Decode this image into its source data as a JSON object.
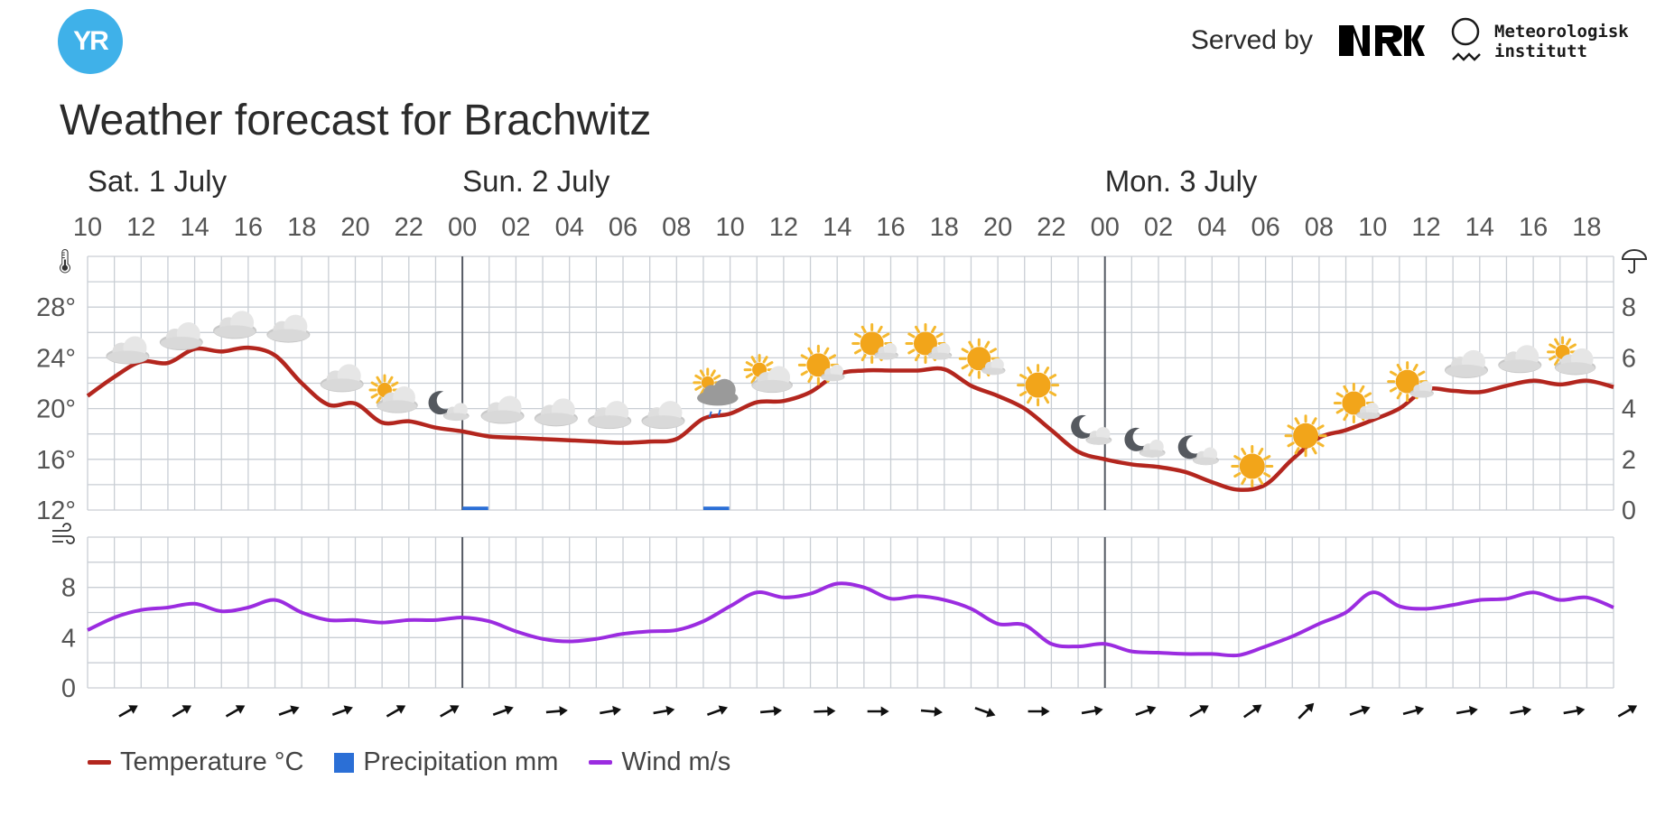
{
  "header": {
    "logo_text": "YR",
    "served_by": "Served by",
    "nrk_logo": "NRK",
    "met_line1": "Meteorologisk",
    "met_line2": "institutt"
  },
  "title": "Weather forecast for Brachwitz",
  "colors": {
    "temperature": "#b3261e",
    "precipitation": "#2b6fd6",
    "wind": "#9b2ce0",
    "grid": "#c9ced4",
    "day_divider": "#555a63",
    "logo": "#3fb1e9"
  },
  "legend": {
    "temperature": "Temperature °C",
    "precipitation": "Precipitation mm",
    "wind": "Wind m/s"
  },
  "chart_data": {
    "type": "line",
    "days": [
      {
        "label": "Sat. 1 July",
        "hour": 10
      },
      {
        "label": "Sun. 2 July",
        "hour": 24
      },
      {
        "label": "Mon. 3 July",
        "hour": 48
      }
    ],
    "x_range_hours": [
      10,
      67
    ],
    "x_tick_labels": [
      "10",
      "12",
      "14",
      "16",
      "18",
      "20",
      "22",
      "00",
      "02",
      "04",
      "06",
      "08",
      "10",
      "12",
      "14",
      "16",
      "18",
      "20",
      "22",
      "00",
      "02",
      "04",
      "06",
      "08",
      "10",
      "12",
      "14",
      "16",
      "18"
    ],
    "temperature_axis": {
      "ticks": [
        "12°",
        "16°",
        "20°",
        "24°",
        "28°"
      ],
      "range": [
        12,
        32
      ],
      "icon": "thermometer-icon"
    },
    "precipitation_axis": {
      "ticks": [
        "0",
        "2",
        "4",
        "6",
        "8"
      ],
      "range": [
        0,
        10
      ],
      "icon": "umbrella-icon"
    },
    "wind_axis": {
      "ticks": [
        "0",
        "4",
        "8"
      ],
      "range": [
        0,
        12
      ],
      "icon": "wind-icon"
    },
    "series": [
      {
        "name": "Temperature °C",
        "unit": "°C",
        "x": [
          10,
          11,
          12,
          13,
          14,
          15,
          16,
          17,
          18,
          19,
          20,
          21,
          22,
          23,
          24,
          25,
          26,
          27,
          28,
          29,
          30,
          31,
          32,
          33,
          34,
          35,
          36,
          37,
          38,
          39,
          40,
          41,
          42,
          43,
          44,
          45,
          46,
          47,
          48,
          49,
          50,
          51,
          52,
          53,
          54,
          55,
          56,
          57,
          58,
          59,
          60,
          61,
          62,
          63,
          64,
          65,
          66,
          67
        ],
        "values": [
          21.0,
          22.5,
          23.7,
          23.6,
          24.7,
          24.5,
          24.8,
          24.2,
          22.0,
          20.3,
          20.4,
          18.9,
          19.0,
          18.5,
          18.2,
          17.8,
          17.7,
          17.6,
          17.5,
          17.4,
          17.3,
          17.4,
          17.6,
          19.2,
          19.6,
          20.5,
          20.6,
          21.3,
          22.7,
          23.0,
          23.0,
          23.0,
          23.1,
          21.8,
          21.0,
          20.0,
          18.3,
          16.6,
          16.0,
          15.6,
          15.4,
          15.0,
          14.2,
          13.6,
          14.0,
          16.0,
          17.7,
          18.3,
          19.1,
          20.0,
          21.5,
          21.4,
          21.3,
          21.8,
          22.2,
          21.9,
          22.2,
          21.7
        ]
      },
      {
        "name": "Precipitation mm",
        "unit": "mm",
        "x": [
          24,
          33
        ],
        "values": [
          0.1,
          0.1
        ]
      },
      {
        "name": "Wind m/s",
        "unit": "m/s",
        "x": [
          10,
          11,
          12,
          13,
          14,
          15,
          16,
          17,
          18,
          19,
          20,
          21,
          22,
          23,
          24,
          25,
          26,
          27,
          28,
          29,
          30,
          31,
          32,
          33,
          34,
          35,
          36,
          37,
          38,
          39,
          40,
          41,
          42,
          43,
          44,
          45,
          46,
          47,
          48,
          49,
          50,
          51,
          52,
          53,
          54,
          55,
          56,
          57,
          58,
          59,
          60,
          61,
          62,
          63,
          64,
          65,
          66,
          67
        ],
        "values": [
          4.6,
          5.6,
          6.2,
          6.4,
          6.7,
          6.1,
          6.4,
          7.0,
          6.0,
          5.4,
          5.4,
          5.2,
          5.4,
          5.4,
          5.6,
          5.3,
          4.5,
          3.9,
          3.7,
          3.9,
          4.3,
          4.5,
          4.6,
          5.3,
          6.5,
          7.6,
          7.2,
          7.5,
          8.3,
          8.0,
          7.1,
          7.3,
          7.0,
          6.3,
          5.1,
          5.0,
          3.5,
          3.3,
          3.5,
          2.9,
          2.8,
          2.7,
          2.7,
          2.6,
          3.3,
          4.1,
          5.1,
          6.0,
          7.6,
          6.5,
          6.3,
          6.6,
          7.0,
          7.1,
          7.6,
          7.0,
          7.2,
          6.4
        ]
      }
    ],
    "weather_symbols": [
      {
        "hour": 11,
        "symbol": "cloudy-icon"
      },
      {
        "hour": 13,
        "symbol": "cloudy-icon"
      },
      {
        "hour": 15,
        "symbol": "cloudy-icon"
      },
      {
        "hour": 17,
        "symbol": "cloudy-icon"
      },
      {
        "hour": 19,
        "symbol": "cloudy-icon"
      },
      {
        "hour": 21,
        "symbol": "partly-cloudy-day-icon"
      },
      {
        "hour": 23,
        "symbol": "partly-cloudy-night-icon"
      },
      {
        "hour": 25,
        "symbol": "cloudy-icon"
      },
      {
        "hour": 27,
        "symbol": "cloudy-icon"
      },
      {
        "hour": 29,
        "symbol": "cloudy-icon"
      },
      {
        "hour": 31,
        "symbol": "cloudy-icon"
      },
      {
        "hour": 33,
        "symbol": "light-rain-showers-icon"
      },
      {
        "hour": 35,
        "symbol": "partly-cloudy-day-icon"
      },
      {
        "hour": 37,
        "symbol": "fair-day-icon"
      },
      {
        "hour": 39,
        "symbol": "fair-day-icon"
      },
      {
        "hour": 41,
        "symbol": "fair-day-icon"
      },
      {
        "hour": 43,
        "symbol": "fair-day-icon"
      },
      {
        "hour": 45,
        "symbol": "clear-sky-icon"
      },
      {
        "hour": 47,
        "symbol": "partly-cloudy-night-icon"
      },
      {
        "hour": 49,
        "symbol": "partly-cloudy-night-icon"
      },
      {
        "hour": 51,
        "symbol": "partly-cloudy-night-icon"
      },
      {
        "hour": 53,
        "symbol": "clear-sky-icon"
      },
      {
        "hour": 55,
        "symbol": "clear-sky-icon"
      },
      {
        "hour": 57,
        "symbol": "fair-day-icon"
      },
      {
        "hour": 59,
        "symbol": "fair-day-icon"
      },
      {
        "hour": 61,
        "symbol": "cloudy-icon"
      },
      {
        "hour": 63,
        "symbol": "cloudy-icon"
      },
      {
        "hour": 65,
        "symbol": "partly-cloudy-day-icon"
      }
    ],
    "wind_directions": [
      {
        "hour": 11,
        "toward_deg": 60
      },
      {
        "hour": 13,
        "toward_deg": 60
      },
      {
        "hour": 15,
        "toward_deg": 60
      },
      {
        "hour": 17,
        "toward_deg": 70
      },
      {
        "hour": 19,
        "toward_deg": 70
      },
      {
        "hour": 21,
        "toward_deg": 60
      },
      {
        "hour": 23,
        "toward_deg": 60
      },
      {
        "hour": 25,
        "toward_deg": 70
      },
      {
        "hour": 27,
        "toward_deg": 85
      },
      {
        "hour": 29,
        "toward_deg": 80
      },
      {
        "hour": 31,
        "toward_deg": 80
      },
      {
        "hour": 33,
        "toward_deg": 70
      },
      {
        "hour": 35,
        "toward_deg": 85
      },
      {
        "hour": 37,
        "toward_deg": 88
      },
      {
        "hour": 39,
        "toward_deg": 90
      },
      {
        "hour": 41,
        "toward_deg": 95
      },
      {
        "hour": 43,
        "toward_deg": 110
      },
      {
        "hour": 45,
        "toward_deg": 90
      },
      {
        "hour": 47,
        "toward_deg": 80
      },
      {
        "hour": 49,
        "toward_deg": 70
      },
      {
        "hour": 51,
        "toward_deg": 60
      },
      {
        "hour": 53,
        "toward_deg": 55
      },
      {
        "hour": 55,
        "toward_deg": 45
      },
      {
        "hour": 57,
        "toward_deg": 70
      },
      {
        "hour": 59,
        "toward_deg": 75
      },
      {
        "hour": 61,
        "toward_deg": 80
      },
      {
        "hour": 63,
        "toward_deg": 80
      },
      {
        "hour": 65,
        "toward_deg": 80
      },
      {
        "hour": 67,
        "toward_deg": 60
      }
    ],
    "grid": true,
    "legend_position": "bottom-left"
  }
}
